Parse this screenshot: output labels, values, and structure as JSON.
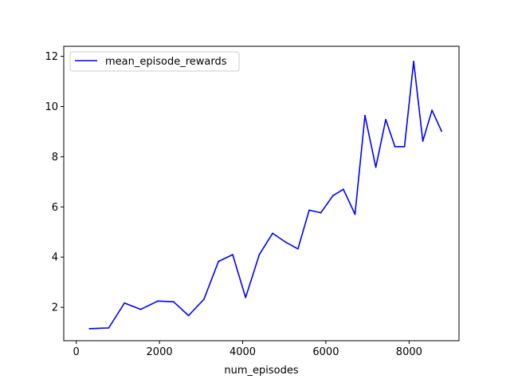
{
  "chart_data": {
    "type": "line",
    "xlabel": "num_episodes",
    "ylabel": "",
    "title": "",
    "xlim": [
      -300,
      9200
    ],
    "ylim": [
      0.67,
      12.4
    ],
    "xticks": [
      0,
      2000,
      4000,
      6000,
      8000
    ],
    "yticks": [
      2,
      4,
      6,
      8,
      10,
      12
    ],
    "xtick_labels": [
      "0",
      "2000",
      "4000",
      "6000",
      "8000"
    ],
    "ytick_labels": [
      "2",
      "4",
      "6",
      "8",
      "10",
      "12"
    ],
    "grid": false,
    "legend": "upper-left",
    "series": [
      {
        "name": "mean_episode_rewards",
        "color": "#0000ff",
        "x": [
          320,
          780,
          1160,
          1550,
          1960,
          2340,
          2700,
          3070,
          3420,
          3760,
          4070,
          4400,
          4720,
          5030,
          5330,
          5600,
          5880,
          6170,
          6420,
          6700,
          6940,
          7200,
          7440,
          7660,
          7890,
          8110,
          8330,
          8550,
          8780
        ],
        "y": [
          1.15,
          1.18,
          2.17,
          1.92,
          2.25,
          2.22,
          1.67,
          2.32,
          3.83,
          4.1,
          2.39,
          4.1,
          4.95,
          4.6,
          4.33,
          5.87,
          5.77,
          6.45,
          6.7,
          5.71,
          9.64,
          7.58,
          9.48,
          8.4,
          8.4,
          11.8,
          8.62,
          9.85,
          9.02
        ]
      }
    ]
  }
}
